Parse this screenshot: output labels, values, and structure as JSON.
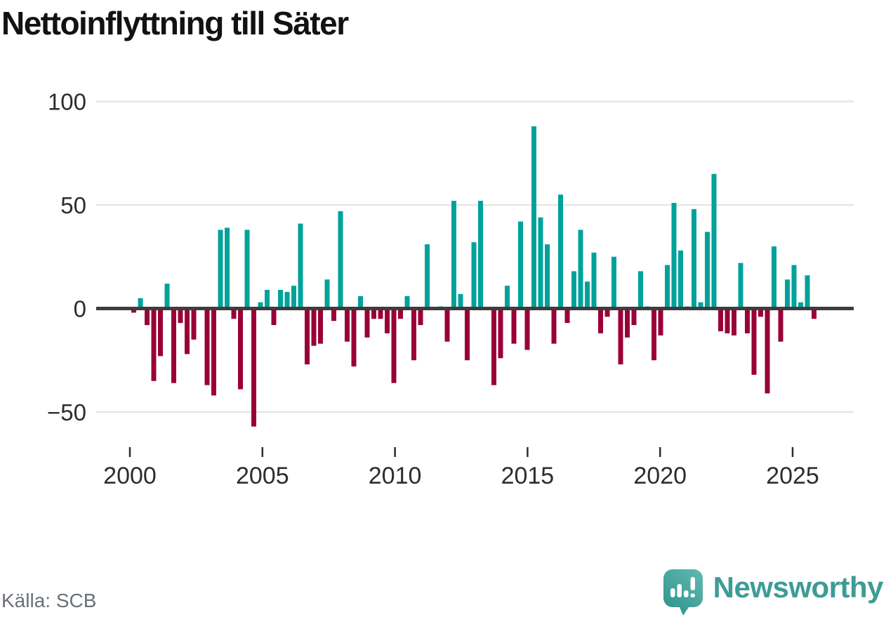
{
  "title": "Nettoinflyttning till Säter",
  "source": "Källa: SCB",
  "branding": {
    "name": "Newsworthy",
    "icon": "newsworthy-speech-bubble-bar-chart-icon",
    "wordmark_color": "#3d9c95",
    "icon_gradient_top": "#5eb6ae",
    "icon_gradient_bottom": "#2d938a"
  },
  "colors": {
    "positive": "#00a29b",
    "negative": "#9a0038",
    "axis": "#3d3d3d",
    "grid": "#e4e4e4",
    "tick_text": "#2d2d2d",
    "source_text": "#6b7077",
    "title_text": "#121212"
  },
  "chart_data": {
    "type": "bar",
    "title": "Nettoinflyttning till Säter",
    "xlabel": "",
    "ylabel": "",
    "x_unit": "quarter",
    "x_start": "2000Q1",
    "x_end": "2025Q3",
    "ylim": [
      -62,
      105
    ],
    "grid": "horizontal",
    "legend": "none",
    "y_ticks": [
      100,
      50,
      0,
      -50
    ],
    "x_tick_years": [
      2000,
      2005,
      2010,
      2015,
      2020,
      2025
    ],
    "positive_color": "#00a29b",
    "negative_color": "#9a0038",
    "categories": [
      "2000Q1",
      "2000Q2",
      "2000Q3",
      "2000Q4",
      "2001Q1",
      "2001Q2",
      "2001Q3",
      "2001Q4",
      "2002Q1",
      "2002Q2",
      "2002Q3",
      "2002Q4",
      "2003Q1",
      "2003Q2",
      "2003Q3",
      "2003Q4",
      "2004Q1",
      "2004Q2",
      "2004Q3",
      "2004Q4",
      "2005Q1",
      "2005Q2",
      "2005Q3",
      "2005Q4",
      "2006Q1",
      "2006Q2",
      "2006Q3",
      "2006Q4",
      "2007Q1",
      "2007Q2",
      "2007Q3",
      "2007Q4",
      "2008Q1",
      "2008Q2",
      "2008Q3",
      "2008Q4",
      "2009Q1",
      "2009Q2",
      "2009Q3",
      "2009Q4",
      "2010Q1",
      "2010Q2",
      "2010Q3",
      "2010Q4",
      "2011Q1",
      "2011Q2",
      "2011Q3",
      "2011Q4",
      "2012Q1",
      "2012Q2",
      "2012Q3",
      "2012Q4",
      "2013Q1",
      "2013Q2",
      "2013Q3",
      "2013Q4",
      "2014Q1",
      "2014Q2",
      "2014Q3",
      "2014Q4",
      "2015Q1",
      "2015Q2",
      "2015Q3",
      "2015Q4",
      "2016Q1",
      "2016Q2",
      "2016Q3",
      "2016Q4",
      "2017Q1",
      "2017Q2",
      "2017Q3",
      "2017Q4",
      "2018Q1",
      "2018Q2",
      "2018Q3",
      "2018Q4",
      "2019Q1",
      "2019Q2",
      "2019Q3",
      "2019Q4",
      "2020Q1",
      "2020Q2",
      "2020Q3",
      "2020Q4",
      "2021Q1",
      "2021Q2",
      "2021Q3",
      "2021Q4",
      "2022Q1",
      "2022Q2",
      "2022Q3",
      "2022Q4",
      "2023Q1",
      "2023Q2",
      "2023Q3",
      "2023Q4",
      "2024Q1",
      "2024Q2",
      "2024Q3",
      "2024Q4",
      "2025Q1",
      "2025Q2",
      "2025Q3"
    ],
    "values": [
      -2,
      5,
      -8,
      -35,
      -23,
      12,
      -36,
      -7,
      -22,
      -15,
      0,
      -37,
      -42,
      38,
      39,
      -5,
      -39,
      38,
      -57,
      3,
      9,
      -8,
      9,
      8,
      11,
      41,
      -27,
      -18,
      -17,
      14,
      -6,
      47,
      -16,
      -28,
      6,
      -14,
      -5,
      -5,
      -12,
      -36,
      -5,
      6,
      -25,
      -8,
      31,
      0,
      1,
      -16,
      52,
      7,
      -25,
      32,
      52,
      0,
      -37,
      -24,
      11,
      -17,
      42,
      -20,
      88,
      44,
      31,
      -17,
      55,
      -7,
      18,
      38,
      13,
      27,
      -12,
      -4,
      25,
      -27,
      -14,
      -8,
      18,
      1,
      -25,
      -13,
      21,
      51,
      28,
      1,
      48,
      3,
      37,
      65,
      -11,
      -12,
      -13,
      22,
      -12,
      -32,
      -4,
      -41,
      30,
      -16,
      14,
      21,
      3,
      16,
      -5
    ]
  }
}
